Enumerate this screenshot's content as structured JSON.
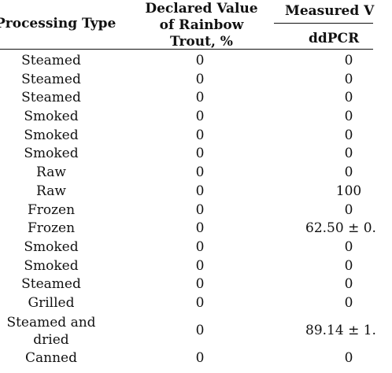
{
  "header": {
    "processing_type": "Processing Type",
    "declared_line1": "Declared Value",
    "declared_line2": "of Rainbow",
    "declared_line3": "Trout, %",
    "measured": "Measured V",
    "ddpcr": "ddPCR"
  },
  "rows": [
    {
      "type": "Steamed",
      "declared": "0",
      "ddpcr": "0"
    },
    {
      "type": "Steamed",
      "declared": "0",
      "ddpcr": "0"
    },
    {
      "type": "Steamed",
      "declared": "0",
      "ddpcr": "0"
    },
    {
      "type": "Smoked",
      "declared": "0",
      "ddpcr": "0"
    },
    {
      "type": "Smoked",
      "declared": "0",
      "ddpcr": "0"
    },
    {
      "type": "Smoked",
      "declared": "0",
      "ddpcr": "0"
    },
    {
      "type": "Raw",
      "declared": "0",
      "ddpcr": "0"
    },
    {
      "type": "Raw",
      "declared": "0",
      "ddpcr": "100"
    },
    {
      "type": "Frozen",
      "declared": "0",
      "ddpcr": "0"
    },
    {
      "type": "Frozen",
      "declared": "0",
      "ddpcr": "62.50 ± 0."
    },
    {
      "type": "Smoked",
      "declared": "0",
      "ddpcr": "0"
    },
    {
      "type": "Smoked",
      "declared": "0",
      "ddpcr": "0"
    },
    {
      "type": "Steamed",
      "declared": "0",
      "ddpcr": "0"
    },
    {
      "type": "Grilled",
      "declared": "0",
      "ddpcr": "0"
    },
    {
      "type": "Steamed and dried",
      "declared": "0",
      "ddpcr": "89.14 ± 1."
    },
    {
      "type": "Canned",
      "declared": "0",
      "ddpcr": "0"
    }
  ]
}
